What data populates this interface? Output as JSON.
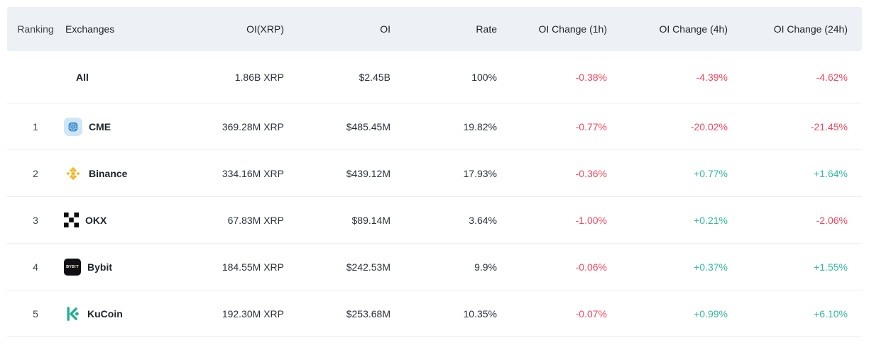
{
  "table": {
    "columns": [
      {
        "key": "ranking",
        "label": "Ranking"
      },
      {
        "key": "exchange",
        "label": "Exchanges"
      },
      {
        "key": "oi_xrp",
        "label": "OI(XRP)"
      },
      {
        "key": "oi",
        "label": "OI"
      },
      {
        "key": "rate",
        "label": "Rate"
      },
      {
        "key": "oi_change_1h",
        "label": "OI Change (1h)"
      },
      {
        "key": "oi_change_4h",
        "label": "OI Change (4h)"
      },
      {
        "key": "oi_change_24h",
        "label": "OI Change (24h)"
      }
    ],
    "rows": [
      {
        "ranking": "",
        "exchange": "All",
        "icon": "",
        "oi_xrp": "1.86B XRP",
        "oi": "$2.45B",
        "rate": "100%",
        "oi_change_1h": "-0.38%",
        "oi_change_4h": "-4.39%",
        "oi_change_24h": "-4.62%"
      },
      {
        "ranking": "1",
        "exchange": "CME",
        "icon": "cme",
        "oi_xrp": "369.28M XRP",
        "oi": "$485.45M",
        "rate": "19.82%",
        "oi_change_1h": "-0.77%",
        "oi_change_4h": "-20.02%",
        "oi_change_24h": "-21.45%"
      },
      {
        "ranking": "2",
        "exchange": "Binance",
        "icon": "binance",
        "oi_xrp": "334.16M XRP",
        "oi": "$439.12M",
        "rate": "17.93%",
        "oi_change_1h": "-0.36%",
        "oi_change_4h": "+0.77%",
        "oi_change_24h": "+1.64%"
      },
      {
        "ranking": "3",
        "exchange": "OKX",
        "icon": "okx",
        "oi_xrp": "67.83M XRP",
        "oi": "$89.14M",
        "rate": "3.64%",
        "oi_change_1h": "-1.00%",
        "oi_change_4h": "+0.21%",
        "oi_change_24h": "-2.06%"
      },
      {
        "ranking": "4",
        "exchange": "Bybit",
        "icon": "bybit",
        "oi_xrp": "184.55M XRP",
        "oi": "$242.53M",
        "rate": "9.9%",
        "oi_change_1h": "-0.06%",
        "oi_change_4h": "+0.37%",
        "oi_change_24h": "+1.55%"
      },
      {
        "ranking": "5",
        "exchange": "KuCoin",
        "icon": "kucoin",
        "oi_xrp": "192.30M XRP",
        "oi": "$253.68M",
        "rate": "10.35%",
        "oi_change_1h": "-0.07%",
        "oi_change_4h": "+0.99%",
        "oi_change_24h": "+6.10%"
      }
    ]
  },
  "icons": {
    "cme": "cme-globe-icon",
    "binance": "binance-logo-icon",
    "okx": "okx-logo-icon",
    "bybit": "bybit-logo-icon",
    "kucoin": "kucoin-logo-icon",
    "bybit_text": {
      "pre": "BYB",
      "accent": "!",
      "post": "T"
    }
  },
  "colors": {
    "negative": "#f5465d",
    "positive": "#31b9a0",
    "header_bg": "#edf1f6",
    "binance_gold": "#f3ba2f",
    "kucoin_green": "#23af91",
    "bybit_accent": "#f7a600",
    "cme_blue": "#2e7fc2",
    "okx_black": "#0b0b0b"
  }
}
